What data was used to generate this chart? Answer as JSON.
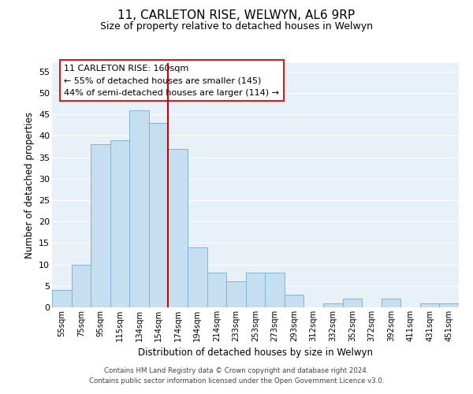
{
  "title": "11, CARLETON RISE, WELWYN, AL6 9RP",
  "subtitle": "Size of property relative to detached houses in Welwyn",
  "xlabel": "Distribution of detached houses by size in Welwyn",
  "ylabel": "Number of detached properties",
  "bar_labels": [
    "55sqm",
    "75sqm",
    "95sqm",
    "115sqm",
    "134sqm",
    "154sqm",
    "174sqm",
    "194sqm",
    "214sqm",
    "233sqm",
    "253sqm",
    "273sqm",
    "293sqm",
    "312sqm",
    "332sqm",
    "352sqm",
    "372sqm",
    "392sqm",
    "411sqm",
    "431sqm",
    "451sqm"
  ],
  "bar_values": [
    4,
    10,
    38,
    39,
    46,
    43,
    37,
    14,
    8,
    6,
    8,
    8,
    3,
    0,
    1,
    2,
    0,
    2,
    0,
    1,
    1
  ],
  "bar_color": "#c5dff0",
  "bar_edge_color": "#7fb4d4",
  "vline_color": "#cc0000",
  "vline_pos": 5.5,
  "ylim": [
    0,
    57
  ],
  "yticks": [
    0,
    5,
    10,
    15,
    20,
    25,
    30,
    35,
    40,
    45,
    50,
    55
  ],
  "annotation_title": "11 CARLETON RISE: 160sqm",
  "annotation_line1": "← 55% of detached houses are smaller (145)",
  "annotation_line2": "44% of semi-detached houses are larger (114) →",
  "footer_line1": "Contains HM Land Registry data © Crown copyright and database right 2024.",
  "footer_line2": "Contains public sector information licensed under the Open Government Licence v3.0.",
  "background_color": "#ffffff",
  "plot_bg_color": "#e8f0f8"
}
